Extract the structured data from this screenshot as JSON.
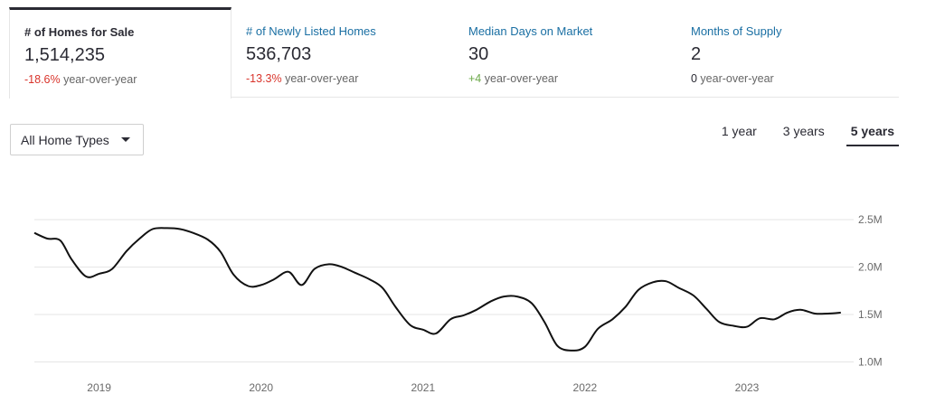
{
  "metrics": [
    {
      "label": "# of Homes for Sale",
      "value": "1,514,235",
      "change": "-18.6%",
      "change_suffix": " year-over-year",
      "active": true
    },
    {
      "label": "# of Newly Listed Homes",
      "value": "536,703",
      "change": "-13.3%",
      "change_suffix": " year-over-year",
      "active": false
    },
    {
      "label": "Median Days on Market",
      "value": "30",
      "change": "+4",
      "change_suffix": " year-over-year",
      "active": false
    },
    {
      "label": "Months of Supply",
      "value": "2",
      "change": "0",
      "change_suffix": " year-over-year",
      "active": false
    }
  ],
  "filter": {
    "selected": "All Home Types",
    "icon": "chevron-down-icon"
  },
  "range_tabs": [
    {
      "label": "1 year",
      "active": false
    },
    {
      "label": "3 years",
      "active": false
    },
    {
      "label": "5 years",
      "active": true
    }
  ],
  "colors": {
    "negative": "#d9342b",
    "positive": "#6ca94a",
    "line": "#111111",
    "link": "#1a6fa3"
  },
  "chart_data": {
    "type": "line",
    "ylim": [
      0.9,
      2.55
    ],
    "y_ticks": [
      {
        "label": "2.5M",
        "value": 2.5
      },
      {
        "label": "2.0M",
        "value": 2.0
      },
      {
        "label": "1.5M",
        "value": 1.5
      },
      {
        "label": "1.0M",
        "value": 1.0
      }
    ],
    "xlim": [
      2018.6,
      2023.62
    ],
    "x_ticks": [
      {
        "label": "2019",
        "value": 2019.0
      },
      {
        "label": "2020",
        "value": 2020.0
      },
      {
        "label": "2021",
        "value": 2021.0
      },
      {
        "label": "2022",
        "value": 2022.0
      },
      {
        "label": "2023",
        "value": 2023.0
      }
    ],
    "grid": true,
    "series": [
      {
        "x": [
          2018.6,
          2018.68,
          2018.76,
          2018.83,
          2018.92,
          2019.0,
          2019.08,
          2019.17,
          2019.25,
          2019.33,
          2019.42,
          2019.5,
          2019.58,
          2019.67,
          2019.75,
          2019.83,
          2019.92,
          2020.0,
          2020.08,
          2020.17,
          2020.25,
          2020.33,
          2020.42,
          2020.5,
          2020.58,
          2020.67,
          2020.75,
          2020.83,
          2020.92,
          2021.0,
          2021.08,
          2021.17,
          2021.25,
          2021.33,
          2021.42,
          2021.5,
          2021.58,
          2021.67,
          2021.75,
          2021.83,
          2021.92,
          2022.0,
          2022.08,
          2022.17,
          2022.25,
          2022.33,
          2022.42,
          2022.5,
          2022.58,
          2022.67,
          2022.75,
          2022.83,
          2022.92,
          2023.0,
          2023.08,
          2023.17,
          2023.25,
          2023.33,
          2023.42,
          2023.5,
          2023.58
        ],
        "values": [
          2.36,
          2.3,
          2.28,
          2.08,
          1.9,
          1.93,
          1.98,
          2.17,
          2.3,
          2.4,
          2.41,
          2.4,
          2.36,
          2.29,
          2.16,
          1.92,
          1.8,
          1.81,
          1.87,
          1.95,
          1.81,
          1.98,
          2.03,
          2.0,
          1.94,
          1.87,
          1.78,
          1.58,
          1.39,
          1.34,
          1.3,
          1.45,
          1.49,
          1.55,
          1.64,
          1.69,
          1.69,
          1.62,
          1.42,
          1.17,
          1.12,
          1.16,
          1.35,
          1.45,
          1.58,
          1.76,
          1.84,
          1.85,
          1.78,
          1.7,
          1.56,
          1.42,
          1.38,
          1.37,
          1.46,
          1.45,
          1.52,
          1.55,
          1.51,
          1.51,
          1.52
        ]
      }
    ]
  }
}
